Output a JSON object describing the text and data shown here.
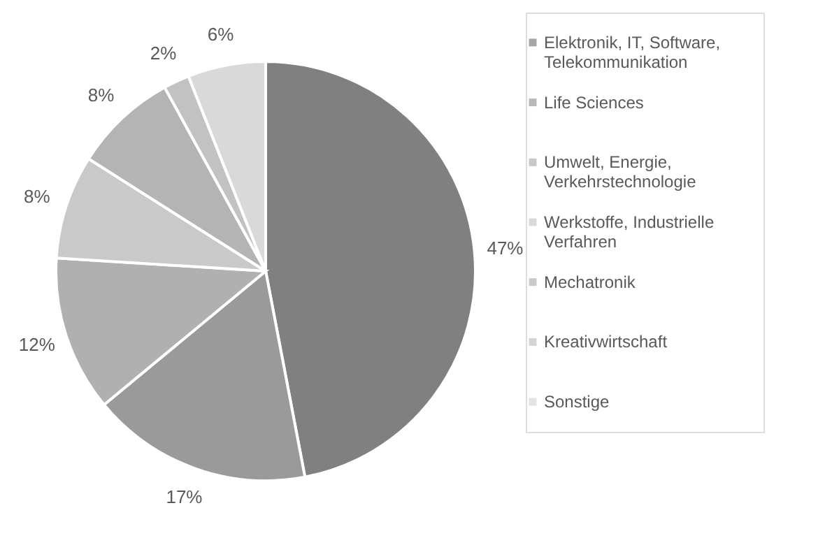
{
  "chart_data": {
    "type": "pie",
    "categories": [
      "Elektronik, IT, Software, Telekommunikation",
      "Life Sciences",
      "Umwelt, Energie, Verkehrstechnologie",
      "Werkstoffe, Industrielle Verfahren",
      "Mechatronik",
      "Kreativwirtschaft",
      "Sonstige"
    ],
    "values": [
      47,
      17,
      12,
      8,
      8,
      2,
      6
    ],
    "colors": [
      "#808080",
      "#9a9a9a",
      "#b0b0b0",
      "#c9c9c9",
      "#b4b4b4",
      "#c2c2c2",
      "#d9d9d9"
    ],
    "value_labels": [
      "47%",
      "17%",
      "12%",
      "8%",
      "8%",
      "2%",
      "6%"
    ],
    "legend": "right"
  }
}
